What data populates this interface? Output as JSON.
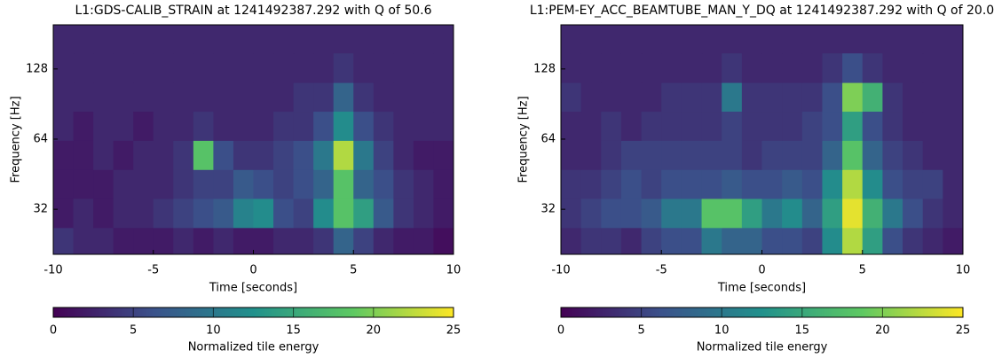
{
  "chart_data": [
    {
      "type": "heatmap",
      "title": "L1:GDS-CALIB_STRAIN at 1241492387.292 with Q of 50.6",
      "xlabel": "Time [seconds]",
      "ylabel": "Frequency [Hz]",
      "yscale": "log",
      "xlim": [
        -10,
        10
      ],
      "ylim": [
        20.5,
        198
      ],
      "xticks": [
        -10,
        -5,
        0,
        5,
        10
      ],
      "yticks": [
        32,
        64,
        128
      ],
      "xbins": [
        -10,
        -9,
        -8,
        -7,
        -6,
        -5,
        -4,
        -3,
        -2,
        -1,
        0,
        1,
        2,
        3,
        4,
        5,
        6,
        7,
        8,
        9,
        10
      ],
      "ybins": [
        20.5,
        26.7,
        35.6,
        47.4,
        63.2,
        84.3,
        112,
        150,
        198
      ],
      "z": [
        [
          4,
          3,
          3,
          2,
          2,
          2,
          3,
          2,
          3,
          2,
          2,
          3,
          3,
          4,
          8,
          5,
          3,
          2,
          2,
          1
        ],
        [
          2,
          3,
          2,
          3,
          3,
          4,
          5,
          6,
          7,
          11,
          12,
          6,
          5,
          12,
          18,
          14,
          7,
          4,
          3,
          2
        ],
        [
          2,
          2,
          2,
          3,
          3,
          3,
          4,
          5,
          5,
          7,
          6,
          5,
          6,
          8,
          18,
          8,
          6,
          4,
          3,
          2
        ],
        [
          2,
          2,
          3,
          2,
          3,
          3,
          4,
          18,
          6,
          4,
          4,
          5,
          6,
          10,
          22,
          10,
          5,
          3,
          2,
          2
        ],
        [
          3,
          2,
          3,
          3,
          2,
          3,
          3,
          4,
          3,
          3,
          3,
          4,
          4,
          6,
          12,
          6,
          4,
          3,
          3,
          3
        ],
        [
          3,
          3,
          3,
          3,
          3,
          3,
          3,
          3,
          3,
          3,
          3,
          3,
          4,
          4,
          8,
          4,
          3,
          3,
          3,
          3
        ],
        [
          3,
          3,
          3,
          3,
          3,
          3,
          3,
          3,
          3,
          3,
          3,
          3,
          3,
          3,
          4,
          3,
          3,
          3,
          3,
          3
        ],
        [
          3,
          3,
          3,
          3,
          3,
          3,
          3,
          3,
          3,
          3,
          3,
          3,
          3,
          3,
          3,
          3,
          3,
          3,
          3,
          3
        ]
      ],
      "colorbar": {
        "label": "Normalized tile energy",
        "lim": [
          0,
          25
        ],
        "ticks": [
          0,
          5,
          10,
          15,
          20,
          25
        ]
      },
      "colormap": [
        "#440154",
        "#3b528b",
        "#21918c",
        "#5ec962",
        "#fde725"
      ]
    },
    {
      "type": "heatmap",
      "title": "L1:PEM-EY_ACC_BEAMTUBE_MAN_Y_DQ at 1241492387.292 with Q of 20.0",
      "xlabel": "Time [seconds]",
      "ylabel": "Frequency [Hz]",
      "yscale": "log",
      "xlim": [
        -10,
        10
      ],
      "ylim": [
        20.5,
        198
      ],
      "xticks": [
        -10,
        -5,
        0,
        5,
        10
      ],
      "yticks": [
        32,
        64,
        128
      ],
      "xbins": [
        -10,
        -9,
        -8,
        -7,
        -6,
        -5,
        -4,
        -3,
        -2,
        -1,
        0,
        1,
        2,
        3,
        4,
        5,
        6,
        7,
        8,
        9,
        10
      ],
      "ybins": [
        20.5,
        26.7,
        35.6,
        47.4,
        63.2,
        84.3,
        112,
        150,
        198
      ],
      "z": [
        [
          3,
          4,
          4,
          3,
          5,
          6,
          6,
          10,
          8,
          8,
          6,
          6,
          5,
          12,
          22,
          14,
          6,
          4,
          3,
          2
        ],
        [
          4,
          5,
          6,
          6,
          7,
          10,
          10,
          18,
          18,
          14,
          10,
          12,
          8,
          14,
          24,
          16,
          10,
          6,
          4,
          3
        ],
        [
          4,
          4,
          5,
          6,
          5,
          6,
          6,
          6,
          7,
          6,
          6,
          7,
          6,
          12,
          22,
          12,
          6,
          5,
          5,
          3
        ],
        [
          3,
          3,
          4,
          5,
          5,
          5,
          5,
          5,
          5,
          4,
          5,
          5,
          5,
          8,
          18,
          8,
          5,
          4,
          3,
          3
        ],
        [
          3,
          3,
          4,
          3,
          4,
          4,
          4,
          4,
          5,
          4,
          4,
          4,
          5,
          6,
          14,
          6,
          4,
          3,
          3,
          3
        ],
        [
          4,
          3,
          3,
          3,
          3,
          4,
          4,
          4,
          10,
          4,
          4,
          4,
          4,
          6,
          20,
          16,
          4,
          3,
          3,
          3
        ],
        [
          3,
          3,
          3,
          3,
          3,
          3,
          3,
          3,
          4,
          3,
          3,
          3,
          3,
          4,
          6,
          4,
          3,
          3,
          3,
          3
        ],
        [
          3,
          3,
          3,
          3,
          3,
          3,
          3,
          3,
          3,
          3,
          3,
          3,
          3,
          3,
          3,
          3,
          3,
          3,
          3,
          3
        ]
      ],
      "colorbar": {
        "label": "Normalized tile energy",
        "lim": [
          0,
          25
        ],
        "ticks": [
          0,
          5,
          10,
          15,
          20,
          25
        ]
      },
      "colormap": [
        "#440154",
        "#3b528b",
        "#21918c",
        "#5ec962",
        "#fde725"
      ]
    }
  ]
}
